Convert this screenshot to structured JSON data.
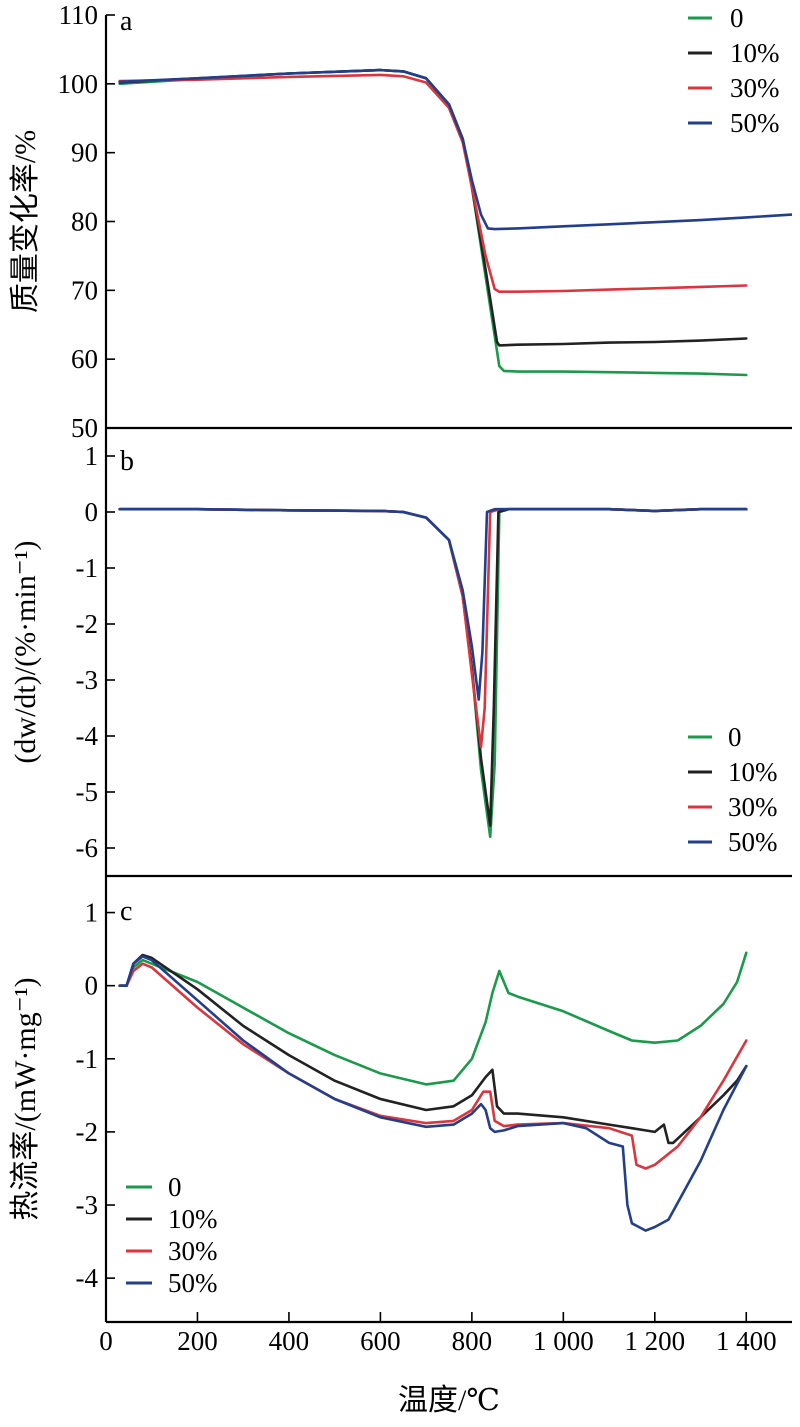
{
  "figure": {
    "xlabel": "温度/℃",
    "x_tick_labels": [
      "0",
      "200",
      "400",
      "600",
      "800",
      "1 000",
      "1 200",
      "1 400"
    ],
    "legend_labels": [
      "0",
      "10%",
      "30%",
      "50%"
    ],
    "series_colors": {
      "0": "#1a9a4a",
      "10%": "#222222",
      "30%": "#d9363e",
      "50%": "#233f8c"
    }
  },
  "chart_data": [
    {
      "panel": "a",
      "type": "line",
      "ylabel": "质量变化率/%",
      "xlim": [
        0,
        1500
      ],
      "ylim": [
        50,
        110
      ],
      "y_ticks": [
        110,
        100,
        90,
        80,
        70,
        60,
        50
      ],
      "legend_position": "top-right",
      "series": [
        {
          "name": "0",
          "x": [
            30,
            200,
            400,
            600,
            650,
            700,
            750,
            780,
            800,
            830,
            860,
            870,
            900,
            1000,
            1100,
            1200,
            1300,
            1400
          ],
          "y": [
            100,
            100.7,
            101.5,
            102,
            101.8,
            100.8,
            97,
            92,
            85,
            72,
            59,
            58.3,
            58.2,
            58.2,
            58.1,
            58,
            57.9,
            57.7
          ]
        },
        {
          "name": "10%",
          "x": [
            30,
            200,
            400,
            600,
            650,
            700,
            750,
            780,
            800,
            830,
            855,
            860,
            900,
            1000,
            1100,
            1200,
            1300,
            1400
          ],
          "y": [
            100.2,
            100.8,
            101.5,
            102,
            101.8,
            100.8,
            97,
            92,
            85,
            73,
            62.5,
            62,
            62.1,
            62.2,
            62.4,
            62.5,
            62.7,
            63
          ]
        },
        {
          "name": "30%",
          "x": [
            30,
            200,
            400,
            600,
            650,
            700,
            750,
            780,
            800,
            830,
            850,
            860,
            900,
            1000,
            1100,
            1200,
            1300,
            1400
          ],
          "y": [
            100.4,
            100.6,
            101,
            101.3,
            101.1,
            100.2,
            96.5,
            91.5,
            85,
            75,
            70.2,
            69.8,
            69.8,
            69.9,
            70.1,
            70.3,
            70.5,
            70.7
          ]
        },
        {
          "name": "50%",
          "x": [
            30,
            200,
            400,
            600,
            650,
            700,
            750,
            780,
            800,
            820,
            835,
            850,
            900,
            1000,
            1100,
            1200,
            1300,
            1400,
            1500
          ],
          "y": [
            100.3,
            100.8,
            101.5,
            102,
            101.8,
            100.8,
            97,
            92,
            86,
            81,
            79,
            78.9,
            79,
            79.3,
            79.6,
            79.9,
            80.2,
            80.6,
            81
          ]
        }
      ]
    },
    {
      "panel": "b",
      "type": "line",
      "ylabel": "(dw/dt)/(%·min⁻¹)",
      "xlim": [
        0,
        1500
      ],
      "ylim": [
        -6.5,
        1.5
      ],
      "y_ticks": [
        1,
        0,
        -1,
        -2,
        -3,
        -4,
        -5,
        -6
      ],
      "legend_position": "bottom-right",
      "series": [
        {
          "name": "0",
          "x": [
            30,
            200,
            400,
            600,
            650,
            700,
            750,
            780,
            800,
            820,
            840,
            850,
            860,
            880,
            1000,
            1100,
            1200,
            1300,
            1400
          ],
          "y": [
            0.05,
            0.05,
            0.03,
            0.02,
            0,
            -0.1,
            -0.5,
            -1.5,
            -2.8,
            -4.6,
            -5.8,
            -4.5,
            0,
            0.05,
            0.05,
            0.05,
            0.02,
            0.05,
            0.05
          ]
        },
        {
          "name": "10%",
          "x": [
            30,
            200,
            400,
            600,
            650,
            700,
            750,
            780,
            800,
            820,
            840,
            848,
            858,
            880,
            1000,
            1100,
            1200,
            1300,
            1400
          ],
          "y": [
            0.05,
            0.05,
            0.03,
            0.02,
            0,
            -0.1,
            -0.5,
            -1.5,
            -2.8,
            -4.4,
            -5.6,
            -3.5,
            0,
            0.05,
            0.05,
            0.05,
            0.02,
            0.05,
            0.05
          ]
        },
        {
          "name": "30%",
          "x": [
            30,
            200,
            400,
            600,
            650,
            700,
            750,
            780,
            800,
            820,
            828,
            840,
            860,
            1000,
            1100,
            1200,
            1300,
            1400
          ],
          "y": [
            0.05,
            0.05,
            0.03,
            0.02,
            0,
            -0.1,
            -0.5,
            -1.5,
            -2.9,
            -4.2,
            -3.5,
            0,
            0.05,
            0.05,
            0.05,
            0.02,
            0.05,
            0.05
          ]
        },
        {
          "name": "50%",
          "x": [
            30,
            200,
            400,
            600,
            650,
            700,
            750,
            780,
            800,
            815,
            823,
            833,
            850,
            1000,
            1100,
            1200,
            1300,
            1400
          ],
          "y": [
            0.05,
            0.05,
            0.03,
            0.02,
            0,
            -0.1,
            -0.5,
            -1.4,
            -2.4,
            -3.35,
            -2.5,
            0,
            0.05,
            0.05,
            0.05,
            0.02,
            0.05,
            0.05
          ]
        }
      ]
    },
    {
      "panel": "c",
      "type": "line",
      "ylabel": "热流率/(mW·mg⁻¹)",
      "xlim": [
        0,
        1500
      ],
      "ylim": [
        -4.6,
        1.5
      ],
      "y_ticks": [
        1,
        0,
        -1,
        -2,
        -3,
        -4
      ],
      "legend_position": "bottom-left",
      "series": [
        {
          "name": "0",
          "x": [
            30,
            45,
            60,
            80,
            100,
            200,
            300,
            400,
            500,
            600,
            700,
            760,
            800,
            830,
            845,
            860,
            880,
            900,
            1000,
            1100,
            1150,
            1200,
            1250,
            1300,
            1350,
            1380,
            1400
          ],
          "y": [
            0,
            0,
            0.25,
            0.35,
            0.3,
            0.05,
            -0.3,
            -0.65,
            -0.95,
            -1.2,
            -1.35,
            -1.3,
            -1.0,
            -0.5,
            -0.1,
            0.2,
            -0.1,
            -0.15,
            -0.35,
            -0.62,
            -0.75,
            -0.78,
            -0.75,
            -0.55,
            -0.25,
            0.05,
            0.45
          ]
        },
        {
          "name": "10%",
          "x": [
            30,
            45,
            60,
            80,
            100,
            200,
            300,
            400,
            500,
            600,
            700,
            760,
            800,
            830,
            845,
            855,
            870,
            900,
            1000,
            1100,
            1150,
            1200,
            1220,
            1230,
            1240,
            1300,
            1350,
            1380,
            1400
          ],
          "y": [
            0,
            0,
            0.3,
            0.42,
            0.38,
            -0.05,
            -0.55,
            -0.95,
            -1.3,
            -1.55,
            -1.7,
            -1.65,
            -1.5,
            -1.25,
            -1.15,
            -1.65,
            -1.75,
            -1.75,
            -1.8,
            -1.9,
            -1.95,
            -2.0,
            -1.9,
            -2.15,
            -2.15,
            -1.8,
            -1.5,
            -1.3,
            -1.1
          ]
        },
        {
          "name": "30%",
          "x": [
            30,
            45,
            60,
            80,
            100,
            200,
            300,
            400,
            500,
            600,
            700,
            760,
            800,
            825,
            840,
            850,
            870,
            900,
            1000,
            1100,
            1150,
            1160,
            1180,
            1200,
            1250,
            1300,
            1350,
            1400
          ],
          "y": [
            0,
            0,
            0.2,
            0.3,
            0.25,
            -0.3,
            -0.8,
            -1.2,
            -1.55,
            -1.78,
            -1.88,
            -1.85,
            -1.7,
            -1.45,
            -1.45,
            -1.85,
            -1.92,
            -1.9,
            -1.88,
            -1.95,
            -2.05,
            -2.45,
            -2.5,
            -2.45,
            -2.2,
            -1.8,
            -1.3,
            -0.75
          ]
        },
        {
          "name": "50%",
          "x": [
            30,
            45,
            60,
            80,
            100,
            200,
            300,
            400,
            500,
            600,
            700,
            760,
            800,
            820,
            830,
            840,
            850,
            870,
            900,
            1000,
            1050,
            1100,
            1130,
            1140,
            1150,
            1180,
            1200,
            1230,
            1300,
            1350,
            1400
          ],
          "y": [
            0,
            0,
            0.3,
            0.4,
            0.35,
            -0.2,
            -0.75,
            -1.2,
            -1.55,
            -1.8,
            -1.93,
            -1.9,
            -1.75,
            -1.62,
            -1.7,
            -1.95,
            -2.0,
            -1.98,
            -1.92,
            -1.88,
            -1.95,
            -2.15,
            -2.2,
            -3.0,
            -3.25,
            -3.35,
            -3.3,
            -3.2,
            -2.4,
            -1.7,
            -1.1
          ]
        }
      ]
    }
  ]
}
